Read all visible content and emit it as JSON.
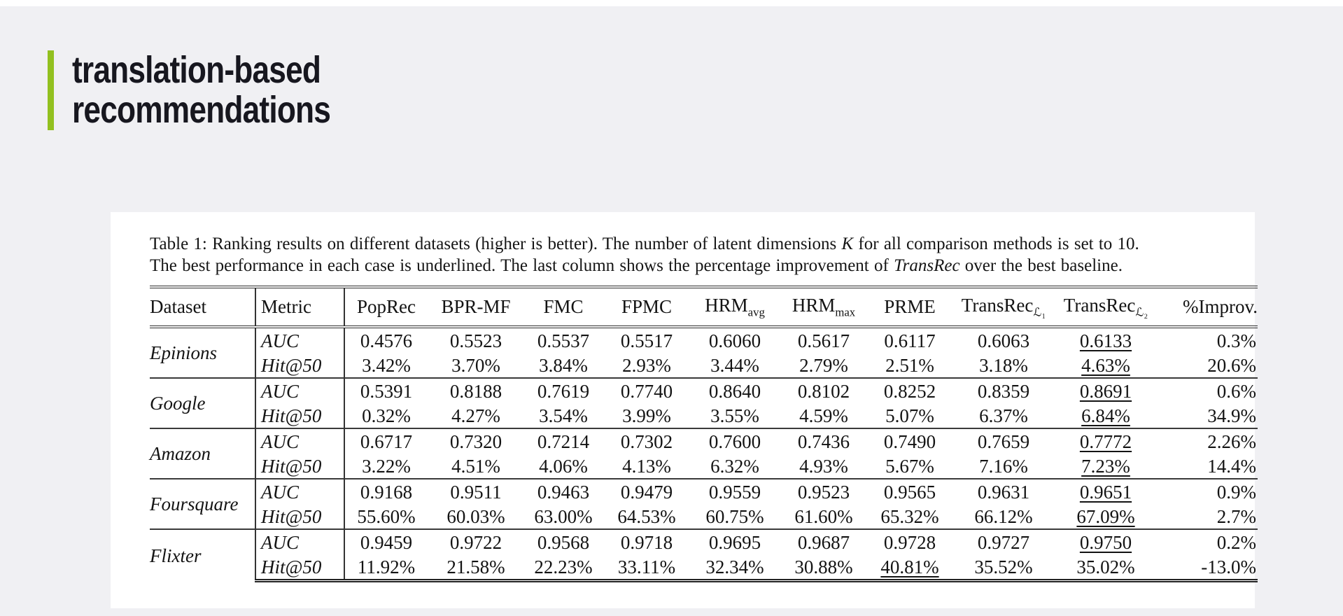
{
  "slide": {
    "title_line1": "translation-based",
    "title_line2": "recommendations",
    "accent_color": "#92c01f",
    "title_color": "#17171f",
    "background_color": "#f0f0f3",
    "panel_color": "#ffffff"
  },
  "table_figure": {
    "caption": {
      "line1": {
        "part1": "Table 1: Ranking results on different datasets (higher is better). The number of latent dimensions ",
        "math_k": "K",
        "part2": " for all comparison methods is set to 10."
      },
      "line2": {
        "part1": "The best performance in each case is underlined. The last column shows the percentage improvement of ",
        "transrec": "TransRec",
        "part2": " over the best baseline."
      }
    },
    "table": {
      "columns": [
        {
          "label": "Dataset"
        },
        {
          "label": "Metric"
        },
        {
          "label": "PopRec"
        },
        {
          "label": "BPR-MF"
        },
        {
          "label": "FMC"
        },
        {
          "label": "FPMC"
        },
        {
          "label": "HRM",
          "sub": "avg"
        },
        {
          "label": "HRM",
          "sub": "max"
        },
        {
          "label": "PRME"
        },
        {
          "label": "TransRec",
          "sub": "ℒ₁"
        },
        {
          "label": "TransRec",
          "sub": "ℒ₂"
        },
        {
          "label": "%Improv."
        }
      ],
      "groups": [
        {
          "dataset": "Epinions",
          "rows": [
            {
              "metric": "AUC",
              "values": [
                "0.4576",
                "0.5523",
                "0.5537",
                "0.5517",
                "0.6060",
                "0.5617",
                "0.6117",
                "0.6063",
                "0.6133",
                "0.3%"
              ],
              "underline": 8
            },
            {
              "metric": "Hit@50",
              "values": [
                "3.42%",
                "3.70%",
                "3.84%",
                "2.93%",
                "3.44%",
                "2.79%",
                "2.51%",
                "3.18%",
                "4.63%",
                "20.6%"
              ],
              "underline": 8
            }
          ]
        },
        {
          "dataset": "Google",
          "rows": [
            {
              "metric": "AUC",
              "values": [
                "0.5391",
                "0.8188",
                "0.7619",
                "0.7740",
                "0.8640",
                "0.8102",
                "0.8252",
                "0.8359",
                "0.8691",
                "0.6%"
              ],
              "underline": 8
            },
            {
              "metric": "Hit@50",
              "values": [
                "0.32%",
                "4.27%",
                "3.54%",
                "3.99%",
                "3.55%",
                "4.59%",
                "5.07%",
                "6.37%",
                "6.84%",
                "34.9%"
              ],
              "underline": 8
            }
          ]
        },
        {
          "dataset": "Amazon",
          "rows": [
            {
              "metric": "AUC",
              "values": [
                "0.6717",
                "0.7320",
                "0.7214",
                "0.7302",
                "0.7600",
                "0.7436",
                "0.7490",
                "0.7659",
                "0.7772",
                "2.26%"
              ],
              "underline": 8
            },
            {
              "metric": "Hit@50",
              "values": [
                "3.22%",
                "4.51%",
                "4.06%",
                "4.13%",
                "6.32%",
                "4.93%",
                "5.67%",
                "7.16%",
                "7.23%",
                "14.4%"
              ],
              "underline": 8
            }
          ]
        },
        {
          "dataset": "Foursquare",
          "rows": [
            {
              "metric": "AUC",
              "values": [
                "0.9168",
                "0.9511",
                "0.9463",
                "0.9479",
                "0.9559",
                "0.9523",
                "0.9565",
                "0.9631",
                "0.9651",
                "0.9%"
              ],
              "underline": 8
            },
            {
              "metric": "Hit@50",
              "values": [
                "55.60%",
                "60.03%",
                "63.00%",
                "64.53%",
                "60.75%",
                "61.60%",
                "65.32%",
                "66.12%",
                "67.09%",
                "2.7%"
              ],
              "underline": 8
            }
          ]
        },
        {
          "dataset": "Flixter",
          "rows": [
            {
              "metric": "AUC",
              "values": [
                "0.9459",
                "0.9722",
                "0.9568",
                "0.9718",
                "0.9695",
                "0.9687",
                "0.9728",
                "0.9727",
                "0.9750",
                "0.2%"
              ],
              "underline": 8
            },
            {
              "metric": "Hit@50",
              "values": [
                "11.92%",
                "21.58%",
                "22.23%",
                "33.11%",
                "32.34%",
                "30.88%",
                "40.81%",
                "35.52%",
                "35.02%",
                "-13.0%"
              ],
              "underline": 6
            }
          ]
        }
      ]
    }
  }
}
